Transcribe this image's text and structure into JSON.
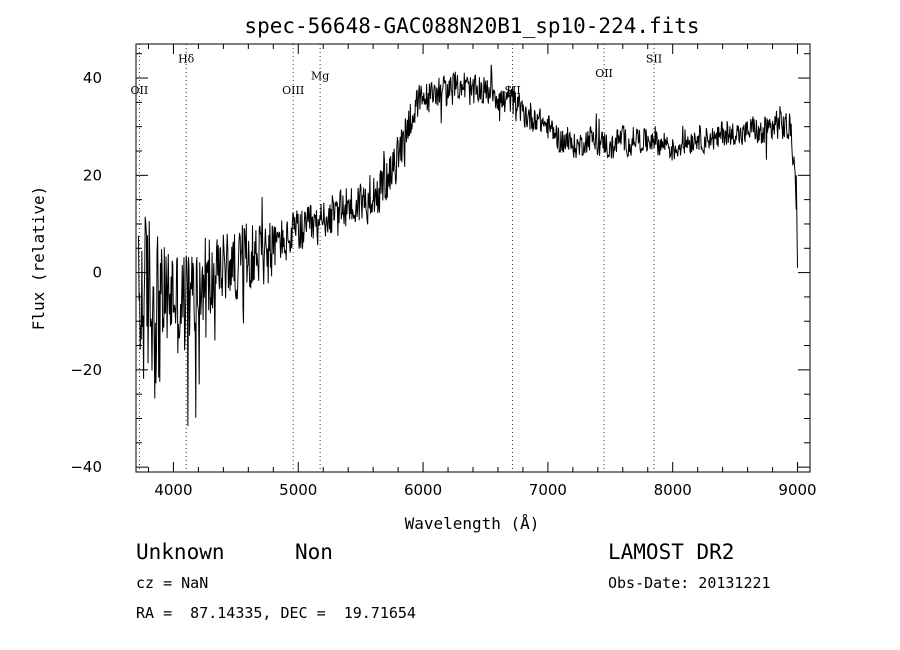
{
  "chart_data": {
    "type": "line",
    "title": "spec-56648-GAC088N20B1_sp10-224.fits",
    "xlabel": "Wavelength (Å)",
    "ylabel": "Flux (relative)",
    "xlim": [
      3700,
      9100
    ],
    "ylim": [
      -41,
      47
    ],
    "xticks": [
      {
        "value": 4000,
        "label": "4000"
      },
      {
        "value": 5000,
        "label": "5000"
      },
      {
        "value": 6000,
        "label": "6000"
      },
      {
        "value": 7000,
        "label": "7000"
      },
      {
        "value": 8000,
        "label": "8000"
      },
      {
        "value": 9000,
        "label": "9000"
      }
    ],
    "yticks": [
      {
        "value": -40,
        "label": "−40"
      },
      {
        "value": -20,
        "label": "−20"
      },
      {
        "value": 0,
        "label": "0"
      },
      {
        "value": 20,
        "label": "20"
      },
      {
        "value": 40,
        "label": "40"
      }
    ],
    "grid": false,
    "legend": "none",
    "line_color": "#000000",
    "spectral_lines": [
      {
        "label": "OII",
        "x": 3727,
        "label_y": 36.7
      },
      {
        "label": "Hδ",
        "x": 4102,
        "label_y": 43.2
      },
      {
        "label": "OIII",
        "x": 4959,
        "label_y": 36.7
      },
      {
        "label": "Mg",
        "x": 5175,
        "label_y": 39.7
      },
      {
        "label": "SII",
        "x": 6717,
        "label_y": 36.7
      },
      {
        "label": "OII",
        "x": 7450,
        "label_y": 40.2
      },
      {
        "label": "SII",
        "x": 7850,
        "label_y": 43.2
      }
    ],
    "series": [
      {
        "x": [
          3700,
          3750,
          3800,
          3850,
          3900,
          3950,
          4000,
          4050,
          4100,
          4150,
          4200,
          4250,
          4300,
          4350,
          4400,
          4450,
          4500,
          4550,
          4600,
          4650,
          4700,
          4750,
          4800,
          4850,
          4900,
          4950,
          5000,
          5050,
          5100,
          5150,
          5200,
          5250,
          5300,
          5350,
          5400,
          5450,
          5500,
          5550,
          5600,
          5650,
          5700,
          5750,
          5800,
          5850,
          5900,
          5950,
          6000,
          6050,
          6100,
          6150,
          6200,
          6250,
          6300,
          6350,
          6400,
          6450,
          6500,
          6550,
          6600,
          6650,
          6700,
          6750,
          6800,
          6850,
          6900,
          6950,
          7000,
          7050,
          7100,
          7150,
          7200,
          7250,
          7300,
          7350,
          7400,
          7450,
          7500,
          7550,
          7600,
          7650,
          7700,
          7750,
          7800,
          7850,
          7900,
          7950,
          8000,
          8050,
          8100,
          8150,
          8200,
          8250,
          8300,
          8350,
          8400,
          8450,
          8500,
          8550,
          8600,
          8650,
          8700,
          8750,
          8800,
          8850,
          8900,
          8950,
          8980,
          9000
        ],
        "y": [
          -10,
          -6,
          -4,
          -8,
          -6,
          -5,
          -4,
          -7,
          -6,
          -5,
          -4,
          -3,
          -2,
          0,
          1,
          2,
          1,
          3,
          4,
          3,
          5,
          4,
          5,
          7,
          6,
          8,
          9,
          8,
          10,
          9,
          11,
          12,
          11,
          13,
          14,
          13,
          15,
          14,
          17,
          16,
          19,
          20,
          24,
          28,
          32,
          34,
          36,
          36,
          37,
          38,
          37,
          38,
          39,
          38,
          37,
          38,
          37,
          38,
          36,
          35,
          36,
          34,
          33,
          32,
          32,
          31,
          30,
          29,
          27,
          27,
          26,
          26,
          27,
          28,
          26,
          27,
          25,
          27,
          28,
          26,
          28,
          27,
          27,
          28,
          26,
          27,
          25,
          26,
          27,
          27,
          28,
          27,
          28,
          27,
          29,
          28,
          29,
          28,
          29,
          30,
          28,
          29,
          30,
          31,
          30,
          29,
          20,
          1
        ]
      }
    ]
  },
  "footer": {
    "object_class": "Unknown",
    "object_subclass": "Non",
    "survey": "LAMOST DR2",
    "redshift": "cz = NaN",
    "obs_date": "Obs-Date: 20131221",
    "coords": "RA =  87.14335, DEC =  19.71654"
  }
}
